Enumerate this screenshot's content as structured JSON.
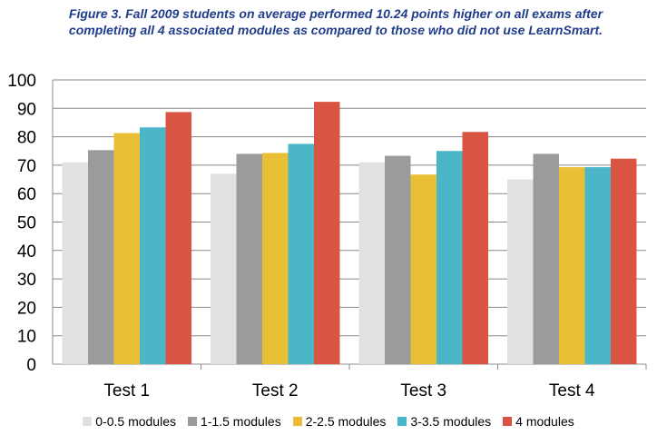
{
  "chart_data": {
    "type": "bar",
    "title": "Figure 3. Fall 2009 students on average performed 10.24 points higher on all exams after completing all 4 associated modules as compared to those who did not use LearnSmart.",
    "categories": [
      "Test 1",
      "Test 2",
      "Test 3",
      "Test 4"
    ],
    "series": [
      {
        "name": "0-0.5 modules",
        "color": "#e1e1e1",
        "values": [
          71,
          67,
          71,
          65
        ]
      },
      {
        "name": "1-1.5 modules",
        "color": "#9b9b9b",
        "values": [
          75.3,
          74,
          73.3,
          74
        ]
      },
      {
        "name": "2-2.5 modules",
        "color": "#e8bf35",
        "values": [
          81.3,
          74.3,
          66.7,
          69.3
        ]
      },
      {
        "name": "3-3.5 modules",
        "color": "#4ab6c7",
        "values": [
          83.3,
          77.5,
          75,
          69.3
        ]
      },
      {
        "name": "4 modules",
        "color": "#d95443",
        "values": [
          88.7,
          92.3,
          81.7,
          72.3
        ]
      }
    ],
    "xlabel": "",
    "ylabel": "",
    "ylim": [
      0,
      100
    ],
    "yticks": [
      0,
      10,
      20,
      30,
      40,
      50,
      60,
      70,
      80,
      90,
      100
    ],
    "grid": true,
    "legend": "bottom"
  }
}
